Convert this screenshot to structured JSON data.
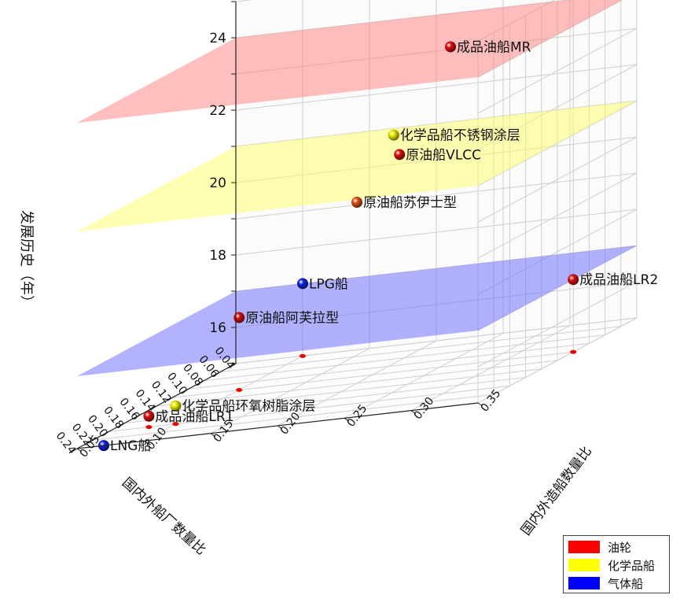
{
  "chart_data": {
    "type": "scatter",
    "chart_kind": "3d-scatter",
    "zlabel": "发展历史（年）",
    "xlabel": "国内外船厂数量比",
    "ylabel": "国内外造船数量比",
    "xlim": [
      0.04,
      0.24
    ],
    "ylim": [
      0.05,
      0.35
    ],
    "zlim": [
      15,
      25
    ],
    "x_ticks": [
      "0.04",
      "0.06",
      "0.08",
      "0.10",
      "0.12",
      "0.14",
      "0.16",
      "0.18",
      "0.20",
      "0.22",
      "0.24"
    ],
    "y_ticks": [
      "0.05",
      "0.10",
      "0.15",
      "0.20",
      "0.25",
      "0.30",
      "0.35"
    ],
    "z_ticks": [
      "16",
      "18",
      "20",
      "22",
      "24"
    ],
    "grid": true,
    "legend_position": "bottom-right",
    "legend": [
      {
        "label": "油轮",
        "color": "#ff0000"
      },
      {
        "label": "化学品船",
        "color": "#ffff00"
      },
      {
        "label": "气体船",
        "color": "#0000ff"
      }
    ],
    "planes": [
      {
        "group": "油轮",
        "z": 24,
        "color": "#ff8080"
      },
      {
        "group": "化学品船",
        "z": 21,
        "color": "#ffff66"
      },
      {
        "group": "气体船",
        "z": 17,
        "color": "#6666ff"
      }
    ],
    "points": [
      {
        "label": "成品油船MR",
        "group": "油轮",
        "x": 0.14,
        "y": 0.27,
        "z": 24,
        "color": "#dd1111"
      },
      {
        "label": "原油船VLCC",
        "group": "油轮",
        "x": 0.12,
        "y": 0.22,
        "z": 21,
        "color": "#dd1111"
      },
      {
        "label": "原油船苏伊士型",
        "group": "油轮",
        "x": 0.14,
        "y": 0.2,
        "z": 20,
        "color": "#e05010"
      },
      {
        "label": "化学品船不锈钢涂层",
        "group": "化学品船",
        "x": 0.06,
        "y": 0.18,
        "z": 21,
        "color": "#e8e800"
      },
      {
        "label": "成品油船LR2",
        "group": "油轮",
        "x": 0.12,
        "y": 0.35,
        "z": 17,
        "color": "#dd1111"
      },
      {
        "label": "LPG船",
        "group": "气体船",
        "x": 0.04,
        "y": 0.1,
        "z": 17,
        "color": "#1122dd"
      },
      {
        "label": "原油船阿芙拉型",
        "group": "油轮",
        "x": 0.12,
        "y": 0.1,
        "z": 17,
        "color": "#dd1111"
      },
      {
        "label": "化学品船环氧树脂涂层",
        "group": "化学品船",
        "x": 0.2,
        "y": 0.1,
        "z": 15.5,
        "color": "#e8e800"
      },
      {
        "label": "成品油船LR1",
        "group": "油轮",
        "x": 0.2,
        "y": 0.08,
        "z": 15.3,
        "color": "#dd1111"
      },
      {
        "label": "LNG船",
        "group": "气体船",
        "x": 0.24,
        "y": 0.07,
        "z": 15,
        "color": "#1122dd"
      }
    ],
    "projections": [
      {
        "x": 0.04,
        "y": 0.1
      },
      {
        "x": 0.12,
        "y": 0.1
      },
      {
        "x": 0.12,
        "y": 0.35
      },
      {
        "x": 0.2,
        "y": 0.1
      },
      {
        "x": 0.2,
        "y": 0.08
      }
    ]
  }
}
